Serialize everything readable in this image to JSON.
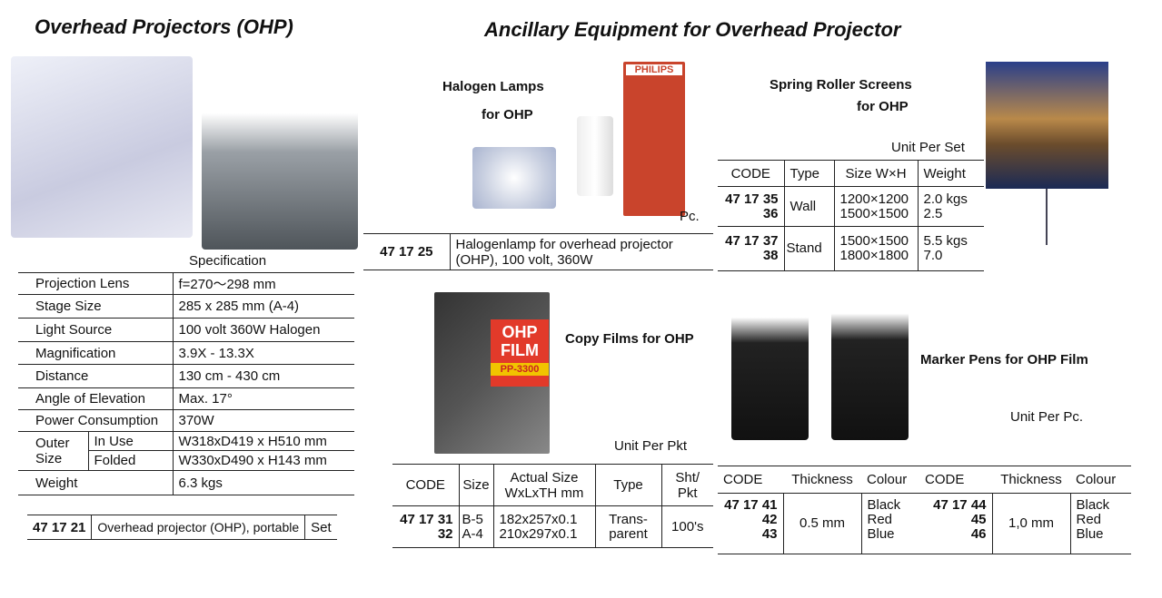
{
  "left": {
    "title": "Overhead Projectors (OHP)",
    "spec_label": "Specification",
    "spec": [
      {
        "label": "Projection Lens",
        "value": "f=270～298 mm"
      },
      {
        "label": "Stage Size",
        "value": "285 x 285 mm (A-4)"
      },
      {
        "label": "Light Source",
        "value": "100 volt 360W Halogen"
      },
      {
        "label": "Magnification",
        "value": "3.9X - 13.3X"
      },
      {
        "label": "Distance",
        "value": "130 cm - 430 cm"
      },
      {
        "label": "Angle of Elevation",
        "value": "Max. 17°"
      },
      {
        "label": "Power Consumption",
        "value": "370W"
      }
    ],
    "outer_size": {
      "label": "Outer Size",
      "in_use": "In Use",
      "in_use_value": "W318xD419 x H510 mm",
      "folded": "Folded",
      "folded_value": "W330xD490 x H143 mm"
    },
    "weight": {
      "label": "Weight",
      "value": "6.3 kgs"
    },
    "product": {
      "code": "47 17 21",
      "description": "Overhead projector (OHP), portable",
      "unit": "Set"
    }
  },
  "right_title": "Ancillary Equipment  for Overhead Projector",
  "halogen": {
    "title1": "Halogen Lamps",
    "title2": "for OHP",
    "brand": "PHILIPS",
    "unit": "Pc.",
    "code": "47 17 25",
    "description": "Halogenlamp for overhead projector (OHP), 100 volt, 360W"
  },
  "screens": {
    "title1": "Spring Roller Screens",
    "title2": "for OHP",
    "unit": "Unit Per Set",
    "headers": [
      "CODE",
      "Type",
      "Size W×H",
      "Weight"
    ],
    "rows": [
      {
        "codes": [
          "47 17 35",
          "36"
        ],
        "type": "Wall",
        "sizes": [
          "1200×1200",
          "1500×1500"
        ],
        "weights": [
          "2.0 kgs",
          "2.5"
        ]
      },
      {
        "codes": [
          "47 17 37",
          "38"
        ],
        "type": "Stand",
        "sizes": [
          "1500×1500",
          "1800×1800"
        ],
        "weights": [
          "5.5 kgs",
          "7.0"
        ]
      }
    ]
  },
  "films": {
    "title": "Copy Films for OHP",
    "box_label1": "OHP",
    "box_label2": "FILM",
    "box_model": "PP-3300",
    "unit": "Unit Per Pkt",
    "headers": [
      "CODE",
      "Size",
      "Actual Size WxLxTH mm",
      "Type",
      "Sht/ Pkt"
    ],
    "codes": [
      "47 17 31",
      "32"
    ],
    "sizes": [
      "B-5",
      "A-4"
    ],
    "dims": [
      "182x257x0.1",
      "210x297x0.1"
    ],
    "type": "Trans- parent",
    "qty": "100's"
  },
  "markers": {
    "title": "Marker Pens for OHP Film",
    "unit": "Unit Per Pc.",
    "headers": [
      "CODE",
      "Thickness",
      "Colour",
      "CODE",
      "Thickness",
      "Colour"
    ],
    "groups": [
      {
        "codes": [
          "47 17 41",
          "42",
          "43"
        ],
        "thickness": "0.5 mm",
        "colours": [
          "Black",
          "Red",
          "Blue"
        ]
      },
      {
        "codes": [
          "47 17 44",
          "45",
          "46"
        ],
        "thickness": "1,0 mm",
        "colours": [
          "Black",
          "Red",
          "Blue"
        ]
      }
    ]
  }
}
